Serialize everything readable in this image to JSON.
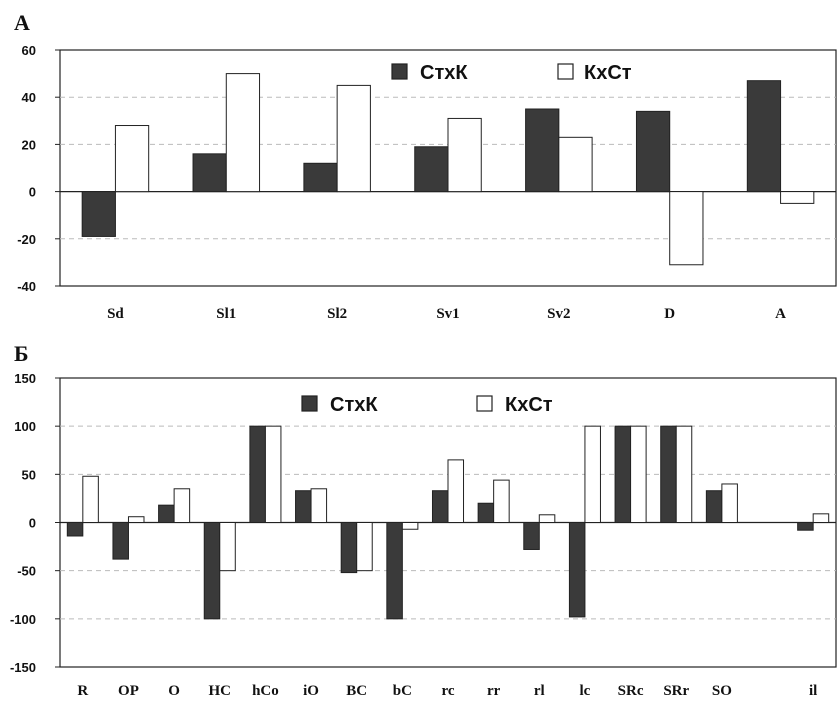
{
  "chart_data": [
    {
      "type": "bar",
      "panel": "А",
      "categories": [
        "Sd",
        "Sl1",
        "Sl2",
        "Sv1",
        "Sv2",
        "D",
        "A"
      ],
      "series": [
        {
          "name": "СтхК",
          "values": [
            -19,
            16,
            12,
            19,
            35,
            34,
            47
          ],
          "color": "#3a3a3a"
        },
        {
          "name": "КхСт",
          "values": [
            28,
            50,
            45,
            31,
            23,
            -31,
            -5
          ],
          "color": "#ffffff"
        }
      ],
      "ylim": [
        -40,
        60
      ],
      "yticks": [
        -40,
        -20,
        0,
        20,
        40,
        60
      ],
      "grid": true,
      "legend": "top-right"
    },
    {
      "type": "bar",
      "panel": "Б",
      "categories": [
        "R",
        "OP",
        "O",
        "HC",
        "hCo",
        "iO",
        "BC",
        "bC",
        "rc",
        "rr",
        "rl",
        "lc",
        "SRc",
        "SRr",
        "SO",
        "",
        "il"
      ],
      "series": [
        {
          "name": "СтхК",
          "values": [
            -14,
            -38,
            18,
            -100,
            100,
            33,
            -52,
            -100,
            33,
            20,
            -28,
            -98,
            100,
            100,
            33,
            null,
            -8
          ],
          "color": "#3a3a3a"
        },
        {
          "name": "КхСт",
          "values": [
            48,
            6,
            35,
            -50,
            100,
            35,
            -50,
            -7,
            65,
            44,
            8,
            100,
            100,
            100,
            40,
            null,
            9
          ],
          "color": "#ffffff"
        }
      ],
      "ylim": [
        -150,
        150
      ],
      "yticks": [
        -150,
        -100,
        -50,
        0,
        50,
        100,
        150
      ],
      "grid": true,
      "legend": "top-center"
    }
  ]
}
